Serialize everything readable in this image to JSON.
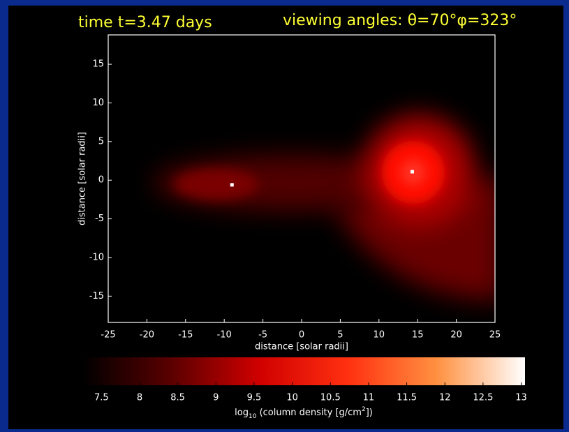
{
  "chart_data": {
    "type": "density-map",
    "title": "time t=3.47 days",
    "subtitle": "viewing angles: θ=70°φ=323°",
    "x_label": "distance [solar radii]",
    "y_label": "distance [solar radii]",
    "xlim": [
      -25,
      25
    ],
    "ylim": [
      -18.4,
      18.8
    ],
    "xticks": [
      -25,
      -20,
      -15,
      -10,
      -5,
      0,
      5,
      10,
      15,
      20,
      25
    ],
    "yticks": [
      -15,
      -10,
      -5,
      0,
      5,
      10,
      15
    ],
    "stars": {
      "x": [
        -9,
        14.3
      ],
      "y": [
        -0.6,
        1.1
      ]
    },
    "colorbar": {
      "label": [
        "log",
        "10",
        " (column density [g/cm",
        "2",
        "])"
      ],
      "lim": [
        7.25,
        13.05
      ],
      "ticks": [
        7.5,
        8,
        8.5,
        9,
        9.5,
        10,
        10.5,
        11,
        11.5,
        12,
        12.5,
        13
      ],
      "colors": [
        "#000000",
        "#5a0000",
        "#d00000",
        "#ff3010",
        "#ff9040",
        "#ffffff"
      ]
    }
  }
}
